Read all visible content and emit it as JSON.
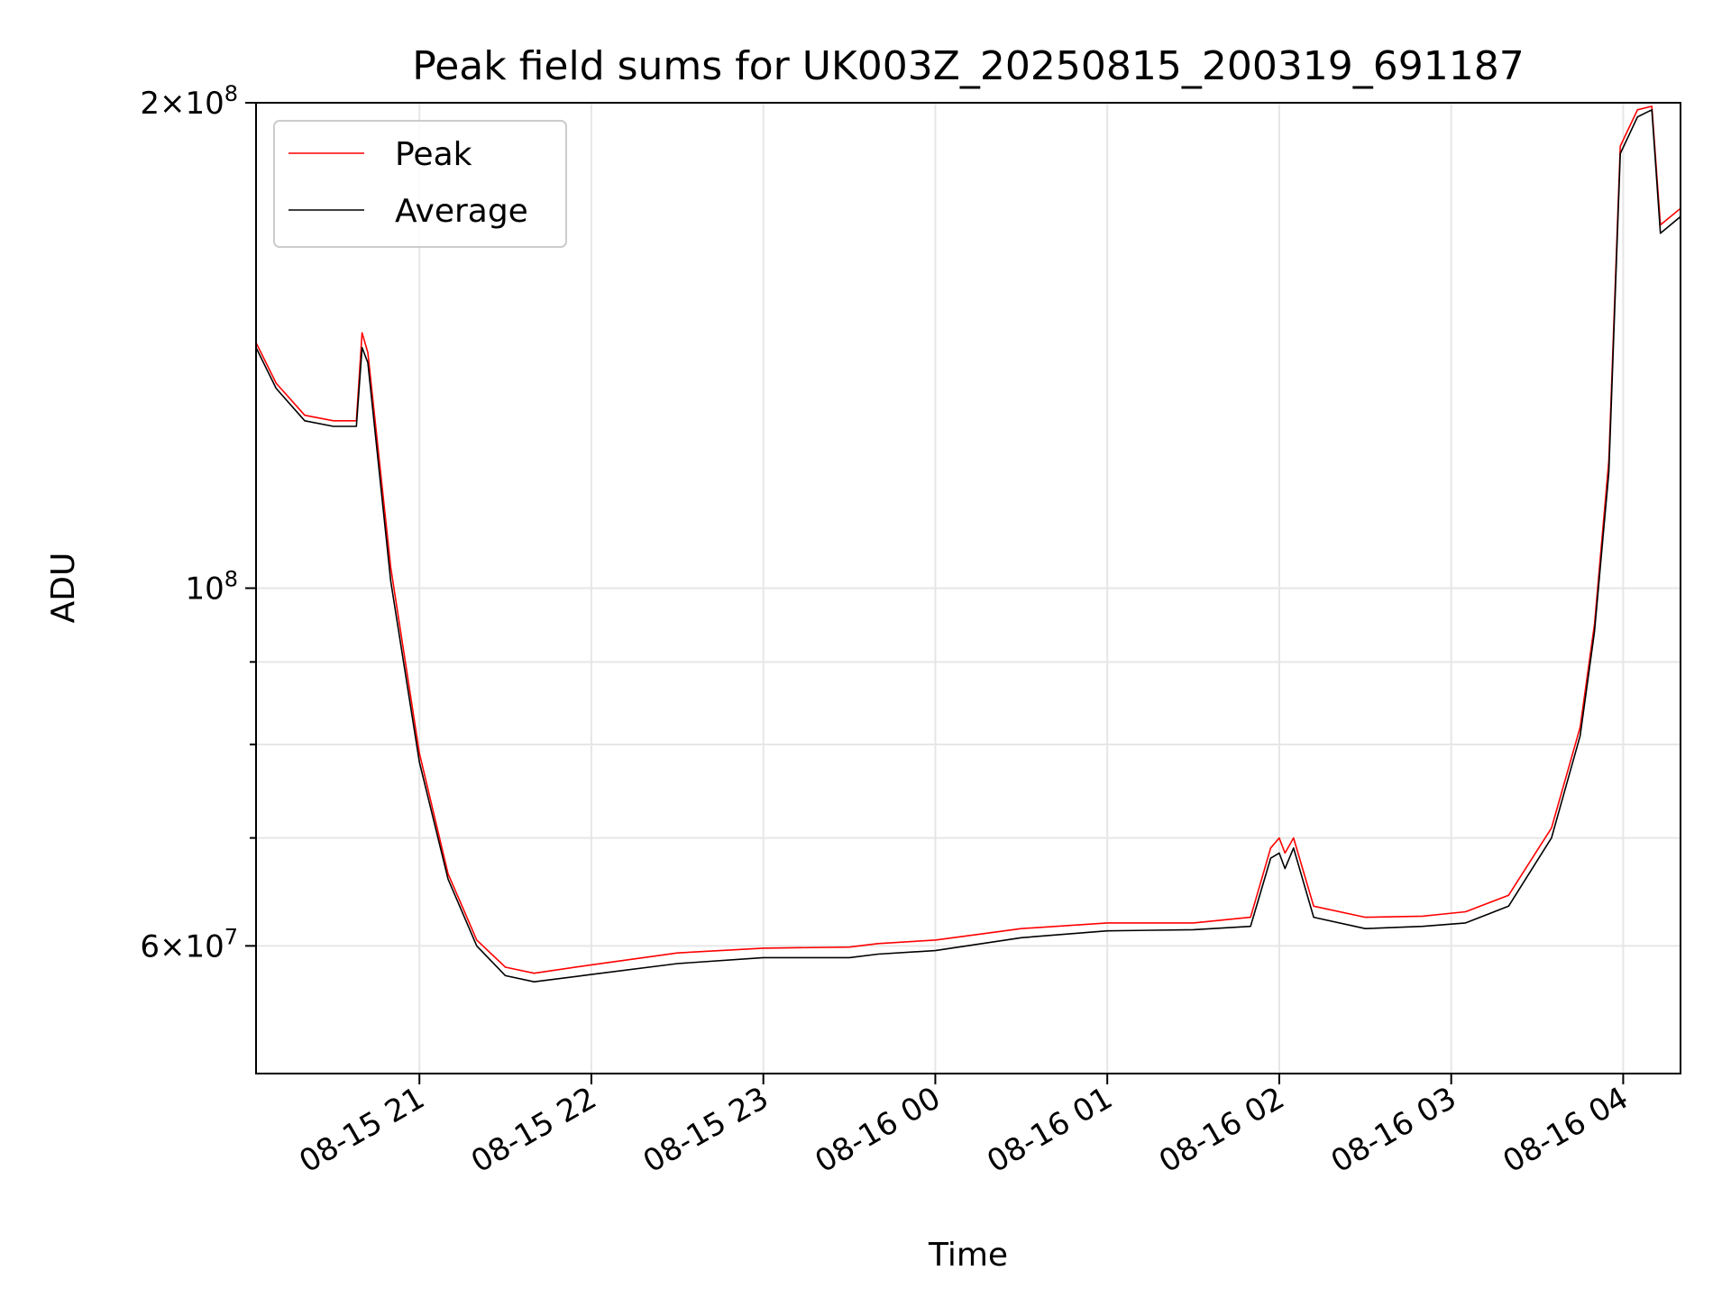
{
  "chart_data": {
    "type": "line",
    "title": "Peak field sums for UK003Z_20250815_200319_691187",
    "xlabel": "Time",
    "ylabel": "ADU",
    "yscale": "log",
    "ylim": [
      50000000,
      200000000
    ],
    "xlim": [
      "2025-08-15 20:03",
      "2025-08-16 04:20"
    ],
    "x_ticks": [
      "08-15 21",
      "08-15 22",
      "08-15 23",
      "08-16 00",
      "08-16 01",
      "08-16 02",
      "08-16 03",
      "08-16 04"
    ],
    "y_ticks": [
      {
        "value": 60000000,
        "mantissa": "6",
        "exp": "7"
      },
      {
        "value": 100000000,
        "mantissa": "",
        "exp": "8"
      },
      {
        "value": 200000000,
        "mantissa": "2",
        "exp": "8"
      }
    ],
    "y_minor_ticks": [
      70000000,
      80000000,
      90000000
    ],
    "grid": true,
    "legend": {
      "placement": "upper-left"
    },
    "series": [
      {
        "name": "Peak",
        "color": "#ff0000"
      },
      {
        "name": "Average",
        "color": "#000000"
      }
    ],
    "x": [
      "2025-08-15 20:03",
      "2025-08-15 20:10",
      "2025-08-15 20:20",
      "2025-08-15 20:30",
      "2025-08-15 20:38",
      "2025-08-15 20:40",
      "2025-08-15 20:42",
      "2025-08-15 20:50",
      "2025-08-15 21:00",
      "2025-08-15 21:10",
      "2025-08-15 21:20",
      "2025-08-15 21:30",
      "2025-08-15 21:40",
      "2025-08-15 22:00",
      "2025-08-15 22:30",
      "2025-08-15 23:00",
      "2025-08-15 23:30",
      "2025-08-15 23:40",
      "2025-08-16 00:00",
      "2025-08-16 00:30",
      "2025-08-16 01:00",
      "2025-08-16 01:30",
      "2025-08-16 01:50",
      "2025-08-16 01:57",
      "2025-08-16 02:00",
      "2025-08-16 02:02",
      "2025-08-16 02:05",
      "2025-08-16 02:12",
      "2025-08-16 02:30",
      "2025-08-16 02:50",
      "2025-08-16 03:05",
      "2025-08-16 03:20",
      "2025-08-16 03:35",
      "2025-08-16 03:45",
      "2025-08-16 03:50",
      "2025-08-16 03:55",
      "2025-08-16 03:59",
      "2025-08-16 04:05",
      "2025-08-16 04:10",
      "2025-08-16 04:13",
      "2025-08-16 04:20"
    ],
    "values_peak": [
      142000000,
      134000000,
      128000000,
      127000000,
      127000000,
      144000000,
      140000000,
      103000000,
      79000000,
      66500000,
      60500000,
      58200000,
      57700000,
      58400000,
      59400000,
      59800000,
      59900000,
      60200000,
      60500000,
      61500000,
      62000000,
      62000000,
      62500000,
      69000000,
      70000000,
      68500000,
      70000000,
      63500000,
      62500000,
      62600000,
      63000000,
      64500000,
      71000000,
      82000000,
      95000000,
      120000000,
      188000000,
      198000000,
      199000000,
      168000000,
      172000000
    ],
    "values_average": [
      141000000,
      133000000,
      127000000,
      126000000,
      126000000,
      141000000,
      138000000,
      101000000,
      78000000,
      66000000,
      60000000,
      57500000,
      57000000,
      57600000,
      58500000,
      59000000,
      59000000,
      59300000,
      59600000,
      60700000,
      61300000,
      61400000,
      61700000,
      68000000,
      68500000,
      67000000,
      69000000,
      62500000,
      61500000,
      61700000,
      62000000,
      63500000,
      70000000,
      81000000,
      94000000,
      118000000,
      186000000,
      196000000,
      198000000,
      166000000,
      170000000
    ]
  }
}
